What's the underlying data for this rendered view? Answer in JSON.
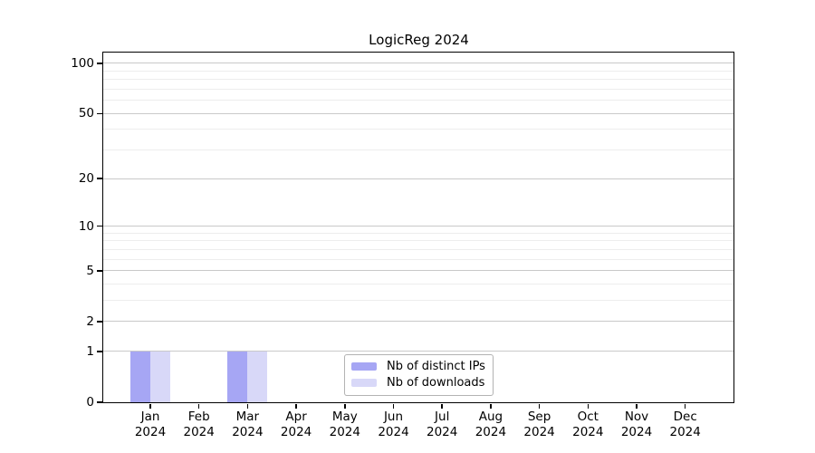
{
  "title": "LogicReg 2024",
  "chart_data": {
    "type": "bar",
    "title": "LogicReg 2024",
    "categories": [
      "Jan",
      "Feb",
      "Mar",
      "Apr",
      "May",
      "Jun",
      "Jul",
      "Aug",
      "Sep",
      "Oct",
      "Nov",
      "Dec"
    ],
    "category_year": "2024",
    "series": [
      {
        "name": "Nb of distinct IPs",
        "color": "#a6a6f4",
        "values": [
          1,
          0,
          1,
          0,
          0,
          0,
          0,
          0,
          0,
          0,
          0,
          0
        ]
      },
      {
        "name": "Nb of downloads",
        "color": "#d8d8f8",
        "values": [
          1,
          0,
          1,
          0,
          0,
          0,
          0,
          0,
          0,
          0,
          0,
          0
        ]
      }
    ],
    "xlabel": "",
    "ylabel": "",
    "yscale": "log1p",
    "ylim": [
      0,
      116
    ],
    "yticks": [
      0,
      1,
      2,
      5,
      10,
      20,
      50,
      100
    ],
    "yticks_minor": [
      3,
      4,
      6,
      7,
      8,
      9,
      30,
      40,
      60,
      70,
      80,
      90
    ],
    "grid": "horizontal",
    "legend_position": "bottom-center",
    "colors": {
      "axis": "#000000",
      "grid_major": "#c9c9c9",
      "grid_minor": "#ededed",
      "legend_border": "#b3b3b3",
      "background": "#ffffff"
    }
  }
}
